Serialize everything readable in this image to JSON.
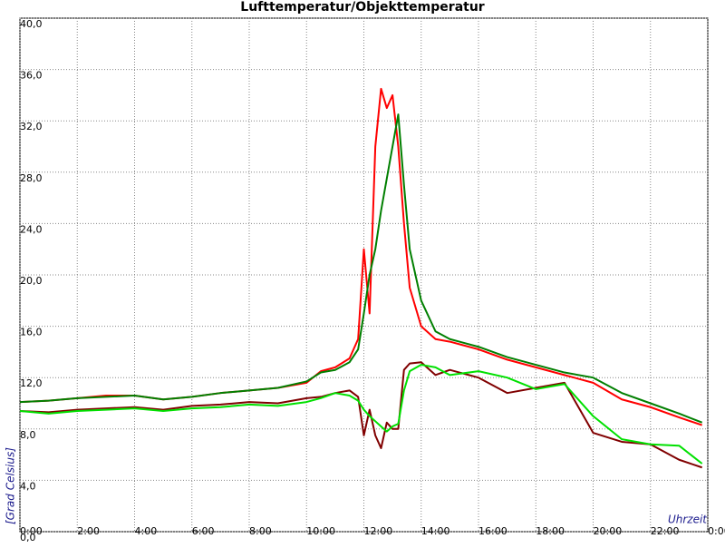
{
  "chart_data": {
    "type": "line",
    "title": "Lufttemperatur/Objekttemperatur",
    "y_label": "[Grad Celsius]",
    "x_label": "Uhrzeit",
    "xlim": [
      0,
      24
    ],
    "ylim": [
      0,
      40
    ],
    "grid": true,
    "xticks": [
      {
        "value": 0,
        "label": "0:00"
      },
      {
        "value": 2,
        "label": "2:00"
      },
      {
        "value": 4,
        "label": "4:00"
      },
      {
        "value": 6,
        "label": "6:00"
      },
      {
        "value": 8,
        "label": "8:00"
      },
      {
        "value": 10,
        "label": "10:00"
      },
      {
        "value": 12,
        "label": "12:00"
      },
      {
        "value": 14,
        "label": "14:00"
      },
      {
        "value": 16,
        "label": "16:00"
      },
      {
        "value": 18,
        "label": "18:00"
      },
      {
        "value": 20,
        "label": "20:00"
      },
      {
        "value": 22,
        "label": "22:00"
      },
      {
        "value": 24,
        "label": "0:00"
      }
    ],
    "yticks": [
      {
        "value": 0,
        "label": "0,0"
      },
      {
        "value": 4,
        "label": "4,0"
      },
      {
        "value": 8,
        "label": "8,0"
      },
      {
        "value": 12,
        "label": "12,0"
      },
      {
        "value": 16,
        "label": "16,0"
      },
      {
        "value": 20,
        "label": "20,0"
      },
      {
        "value": 24,
        "label": "24,0"
      },
      {
        "value": 28,
        "label": "28,0"
      },
      {
        "value": 32,
        "label": "32,0"
      },
      {
        "value": 36,
        "label": "36,0"
      },
      {
        "value": 40,
        "label": "40,0"
      }
    ],
    "x": [
      0,
      1,
      2,
      3,
      4,
      5,
      6,
      7,
      8,
      9,
      10,
      10.5,
      11,
      11.5,
      11.8,
      12,
      12.2,
      12.4,
      12.6,
      12.8,
      13,
      13.2,
      13.4,
      13.6,
      14,
      14.5,
      15,
      16,
      17,
      18,
      19,
      20,
      21,
      22,
      23,
      23.8
    ],
    "series": [
      {
        "color": "#ff0000",
        "values": [
          10.1,
          10.2,
          10.4,
          10.6,
          10.6,
          10.3,
          10.5,
          10.8,
          11.0,
          11.2,
          11.6,
          12.5,
          12.8,
          13.5,
          15,
          22,
          17,
          30,
          34.5,
          33,
          34,
          30,
          24,
          19,
          16,
          15,
          14.8,
          14.2,
          13.4,
          12.8,
          12.2,
          11.6,
          10.3,
          9.7,
          8.9,
          8.3
        ]
      },
      {
        "color": "#007f00",
        "values": [
          10.1,
          10.2,
          10.4,
          10.5,
          10.6,
          10.3,
          10.5,
          10.8,
          11.0,
          11.2,
          11.7,
          12.4,
          12.6,
          13.2,
          14.2,
          17,
          20,
          22,
          25,
          27.5,
          30,
          32.5,
          27,
          22,
          18,
          15.6,
          15,
          14.4,
          13.6,
          13,
          12.4,
          12,
          10.8,
          10.0,
          9.2,
          8.5
        ]
      },
      {
        "color": "#800000",
        "values": [
          9.4,
          9.3,
          9.5,
          9.6,
          9.7,
          9.5,
          9.8,
          9.9,
          10.1,
          10.0,
          10.4,
          10.5,
          10.8,
          11.0,
          10.5,
          7.5,
          9.5,
          7.5,
          6.5,
          8.5,
          8,
          8,
          12.6,
          13.1,
          13.2,
          12.2,
          12.6,
          12.0,
          10.8,
          11.2,
          11.6,
          7.7,
          7.0,
          6.8,
          5.6,
          5.0
        ]
      },
      {
        "color": "#00e000",
        "values": [
          9.4,
          9.2,
          9.4,
          9.5,
          9.6,
          9.4,
          9.6,
          9.7,
          9.9,
          9.8,
          10.1,
          10.4,
          10.8,
          10.6,
          10.2,
          9.5,
          9,
          8.6,
          8.2,
          7.8,
          8.2,
          8.4,
          11,
          12.5,
          13.0,
          12.8,
          12.2,
          12.5,
          12.0,
          11.1,
          11.5,
          9.0,
          7.2,
          6.8,
          6.7,
          5.3
        ]
      }
    ]
  }
}
